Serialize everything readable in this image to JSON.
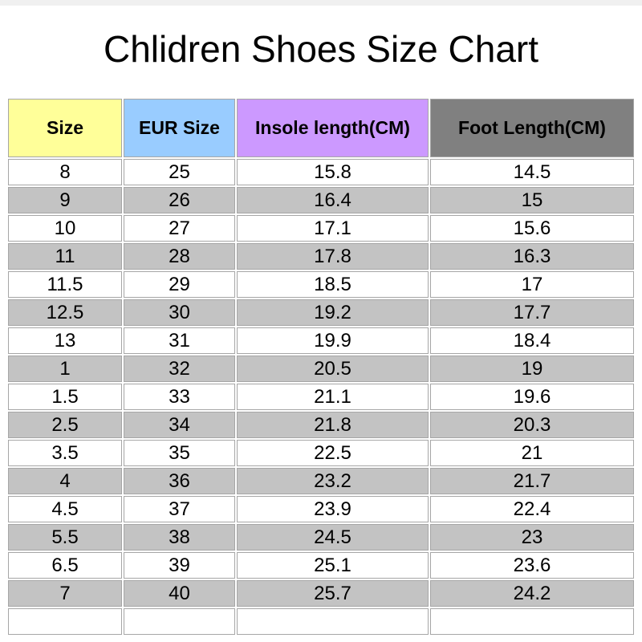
{
  "chart_data": {
    "type": "table",
    "title": "Chlidren Shoes Size Chart",
    "columns": [
      "Size",
      "EUR Size",
      "Insole length(CM)",
      "Foot Length(CM)"
    ],
    "header_colors": [
      "#ffff99",
      "#99ccff",
      "#cc99ff",
      "#808080"
    ],
    "row_stripe_colors": [
      "#ffffff",
      "#c3c3c3"
    ],
    "grid_color": "#a6a6a6",
    "rows": [
      [
        "8",
        "25",
        "15.8",
        "14.5"
      ],
      [
        "9",
        "26",
        "16.4",
        "15"
      ],
      [
        "10",
        "27",
        "17.1",
        "15.6"
      ],
      [
        "11",
        "28",
        "17.8",
        "16.3"
      ],
      [
        "11.5",
        "29",
        "18.5",
        "17"
      ],
      [
        "12.5",
        "30",
        "19.2",
        "17.7"
      ],
      [
        "13",
        "31",
        "19.9",
        "18.4"
      ],
      [
        "1",
        "32",
        "20.5",
        "19"
      ],
      [
        "1.5",
        "33",
        "21.1",
        "19.6"
      ],
      [
        "2.5",
        "34",
        "21.8",
        "20.3"
      ],
      [
        "3.5",
        "35",
        "22.5",
        "21"
      ],
      [
        "4",
        "36",
        "23.2",
        "21.7"
      ],
      [
        "4.5",
        "37",
        "23.9",
        "22.4"
      ],
      [
        "5.5",
        "38",
        "24.5",
        "23"
      ],
      [
        "6.5",
        "39",
        "25.1",
        "23.6"
      ],
      [
        "7",
        "40",
        "25.7",
        "24.2"
      ],
      [
        "",
        "",
        "",
        ""
      ]
    ]
  }
}
